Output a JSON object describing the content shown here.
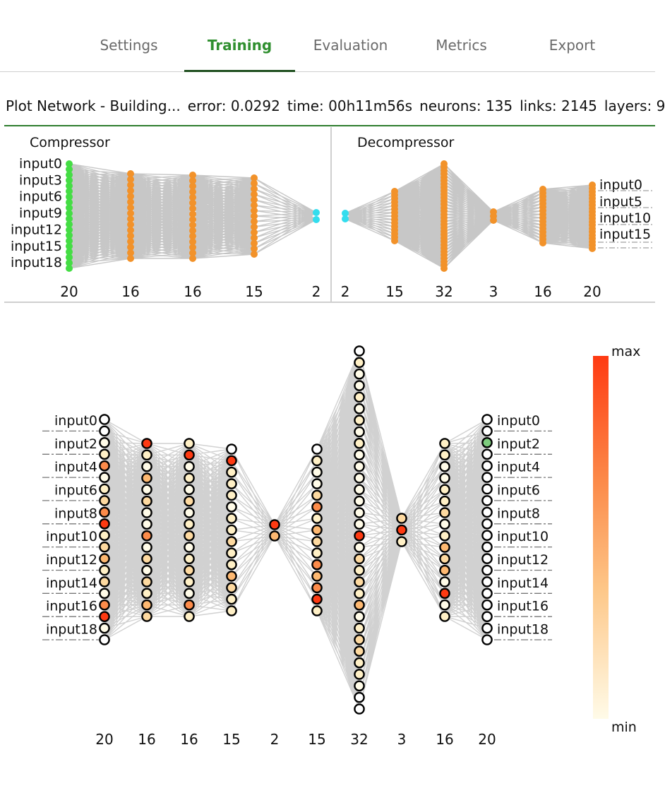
{
  "tabs": [
    {
      "label": "Settings"
    },
    {
      "label": "Training"
    },
    {
      "label": "Evaluation"
    },
    {
      "label": "Metrics"
    },
    {
      "label": "Export"
    }
  ],
  "active_tab": "Training",
  "status": {
    "title": "Plot Network - Building...",
    "error": "error: 0.0292",
    "time": "time: 00h11m56s",
    "neurons": "neurons: 135",
    "links": "links: 2145",
    "layers": "layers: 9"
  },
  "compressor": {
    "title": "Compressor",
    "layer_sizes": [
      "20",
      "16",
      "16",
      "15",
      "2"
    ],
    "input_labels": [
      "input0",
      "input3",
      "input6",
      "input9",
      "input12",
      "input15",
      "input18"
    ]
  },
  "decompressor": {
    "title": "Decompressor",
    "layer_sizes": [
      "2",
      "15",
      "32",
      "3",
      "16",
      "20"
    ],
    "output_labels": [
      "input0",
      "input5",
      "input10",
      "input15"
    ]
  },
  "network": {
    "layer_sizes": [
      "20",
      "16",
      "16",
      "15",
      "2",
      "15",
      "32",
      "3",
      "16",
      "20"
    ],
    "input_labels": [
      "input0",
      "input2",
      "input4",
      "input6",
      "input8",
      "input10",
      "input12",
      "input14",
      "input16",
      "input18"
    ],
    "output_labels": [
      "input0",
      "input2",
      "input4",
      "input6",
      "input8",
      "input10",
      "input12",
      "input14",
      "input16",
      "input18"
    ]
  },
  "legend": {
    "max": "max",
    "min": "min"
  },
  "colors": {
    "accent": "#2f8f2f",
    "compressor_input": "#44dd44",
    "hidden": "#f2922a",
    "latent": "#33ddee",
    "highlight_output": "#7dcc7d",
    "scale_max": "#fe3a12",
    "scale_min": "#fffbe8"
  }
}
